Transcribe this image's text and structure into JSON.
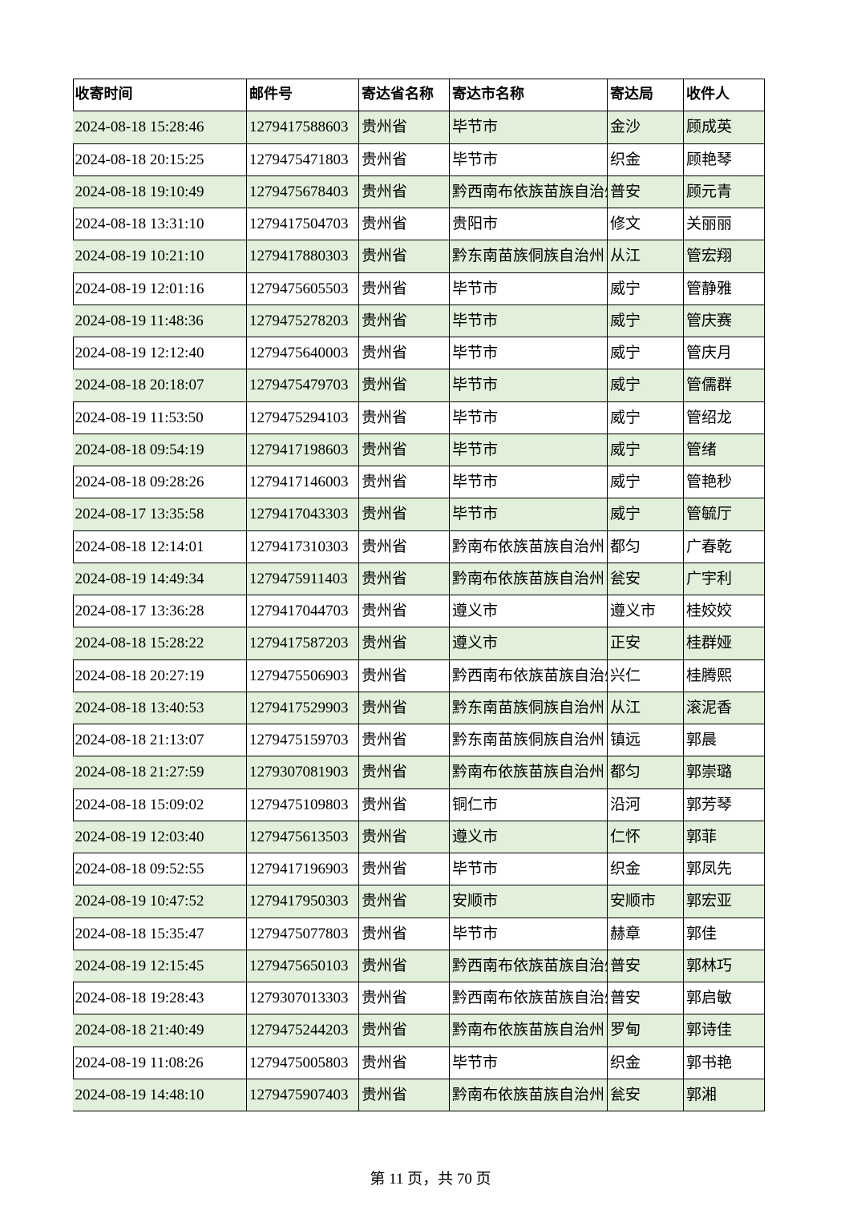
{
  "table": {
    "header": [
      "收寄时间",
      "邮件号",
      "寄达省名称",
      "寄达市名称",
      "寄达局",
      "收件人"
    ],
    "rows": [
      [
        "2024-08-18 15:28:46",
        "1279417588603",
        "贵州省",
        "毕节市",
        "金沙",
        "顾成英"
      ],
      [
        "2024-08-18 20:15:25",
        "1279475471803",
        "贵州省",
        "毕节市",
        "织金",
        "顾艳琴"
      ],
      [
        "2024-08-18 19:10:49",
        "1279475678403",
        "贵州省",
        "黔西南布依族苗族自治州",
        "普安",
        "顾元青"
      ],
      [
        "2024-08-18 13:31:10",
        "1279417504703",
        "贵州省",
        "贵阳市",
        "修文",
        "关丽丽"
      ],
      [
        "2024-08-19 10:21:10",
        "1279417880303",
        "贵州省",
        "黔东南苗族侗族自治州",
        "从江",
        "管宏翔"
      ],
      [
        "2024-08-19 12:01:16",
        "1279475605503",
        "贵州省",
        "毕节市",
        "威宁",
        "管静雅"
      ],
      [
        "2024-08-19 11:48:36",
        "1279475278203",
        "贵州省",
        "毕节市",
        "威宁",
        "管庆赛"
      ],
      [
        "2024-08-19 12:12:40",
        "1279475640003",
        "贵州省",
        "毕节市",
        "威宁",
        "管庆月"
      ],
      [
        "2024-08-18 20:18:07",
        "1279475479703",
        "贵州省",
        "毕节市",
        "威宁",
        "管儒群"
      ],
      [
        "2024-08-19 11:53:50",
        "1279475294103",
        "贵州省",
        "毕节市",
        "威宁",
        "管绍龙"
      ],
      [
        "2024-08-18 09:54:19",
        "1279417198603",
        "贵州省",
        "毕节市",
        "威宁",
        "管绪"
      ],
      [
        "2024-08-18 09:28:26",
        "1279417146003",
        "贵州省",
        "毕节市",
        "威宁",
        "管艳秒"
      ],
      [
        "2024-08-17 13:35:58",
        "1279417043303",
        "贵州省",
        "毕节市",
        "威宁",
        "管毓厅"
      ],
      [
        "2024-08-18 12:14:01",
        "1279417310303",
        "贵州省",
        "黔南布依族苗族自治州",
        "都匀",
        "广春乾"
      ],
      [
        "2024-08-19 14:49:34",
        "1279475911403",
        "贵州省",
        "黔南布依族苗族自治州",
        "瓮安",
        "广宇利"
      ],
      [
        "2024-08-17 13:36:28",
        "1279417044703",
        "贵州省",
        "遵义市",
        "遵义市",
        "桂姣姣"
      ],
      [
        "2024-08-18 15:28:22",
        "1279417587203",
        "贵州省",
        "遵义市",
        "正安",
        "桂群娅"
      ],
      [
        "2024-08-18 20:27:19",
        "1279475506903",
        "贵州省",
        "黔西南布依族苗族自治州",
        "兴仁",
        "桂腾熙"
      ],
      [
        "2024-08-18 13:40:53",
        "1279417529903",
        "贵州省",
        "黔东南苗族侗族自治州",
        "从江",
        "滚泥香"
      ],
      [
        "2024-08-18 21:13:07",
        "1279475159703",
        "贵州省",
        "黔东南苗族侗族自治州",
        "镇远",
        "郭晨"
      ],
      [
        "2024-08-18 21:27:59",
        "1279307081903",
        "贵州省",
        "黔南布依族苗族自治州",
        "都匀",
        "郭崇璐"
      ],
      [
        "2024-08-18 15:09:02",
        "1279475109803",
        "贵州省",
        "铜仁市",
        "沿河",
        "郭芳琴"
      ],
      [
        "2024-08-19 12:03:40",
        "1279475613503",
        "贵州省",
        "遵义市",
        "仁怀",
        "郭菲"
      ],
      [
        "2024-08-18 09:52:55",
        "1279417196903",
        "贵州省",
        "毕节市",
        "织金",
        "郭凤先"
      ],
      [
        "2024-08-19 10:47:52",
        "1279417950303",
        "贵州省",
        "安顺市",
        "安顺市",
        "郭宏亚"
      ],
      [
        "2024-08-18 15:35:47",
        "1279475077803",
        "贵州省",
        "毕节市",
        "赫章",
        "郭佳"
      ],
      [
        "2024-08-19 12:15:45",
        "1279475650103",
        "贵州省",
        "黔西南布依族苗族自治州",
        "普安",
        "郭林巧"
      ],
      [
        "2024-08-18 19:28:43",
        "1279307013303",
        "贵州省",
        "黔西南布依族苗族自治州",
        "普安",
        "郭启敏"
      ],
      [
        "2024-08-18 21:40:49",
        "1279475244203",
        "贵州省",
        "黔南布依族苗族自治州",
        "罗甸",
        "郭诗佳"
      ],
      [
        "2024-08-19 11:08:26",
        "1279475005803",
        "贵州省",
        "毕节市",
        "织金",
        "郭书艳"
      ],
      [
        "2024-08-19 14:48:10",
        "1279475907403",
        "贵州省",
        "黔南布依族苗族自治州",
        "瓮安",
        "郭湘"
      ]
    ]
  },
  "footer": "第 11 页，共 70 页"
}
